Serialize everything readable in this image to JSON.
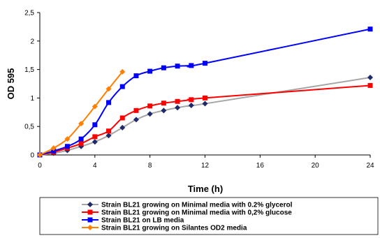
{
  "chart_data": {
    "type": "line",
    "xlabel": "Time (h)",
    "ylabel": "OD 595",
    "xlim": [
      0,
      24
    ],
    "ylim": [
      0,
      2.5
    ],
    "xticks": [
      0,
      4,
      8,
      12,
      16,
      20,
      24
    ],
    "xtick_labels": [
      "0",
      "4",
      "8",
      "12",
      "16",
      "20",
      "24"
    ],
    "yticks": [
      0,
      0.5,
      1,
      1.5,
      2,
      2.5
    ],
    "ytick_labels": [
      "0",
      "0,5",
      "1",
      "1,5",
      "2",
      "2,5"
    ],
    "grid": false,
    "legend_position": "bottom",
    "series": [
      {
        "name": "Strain BL21 growing on Minimal media with 0.2% glycerol",
        "color": "#1f2a6b",
        "line_color": "#a6a6a6",
        "marker": "diamond",
        "x": [
          0,
          1,
          2,
          3,
          4,
          5,
          6,
          7,
          8,
          9,
          10,
          11,
          12,
          24
        ],
        "y": [
          0,
          0.03,
          0.08,
          0.15,
          0.23,
          0.34,
          0.48,
          0.62,
          0.72,
          0.78,
          0.83,
          0.87,
          0.9,
          1.36
        ]
      },
      {
        "name": "Strain BL21 growing on Minimal media with 0,2% glucose",
        "color": "#ff0000",
        "line_color": "#ff0000",
        "marker": "square",
        "x": [
          0,
          1,
          2,
          3,
          4,
          5,
          6,
          7,
          8,
          9,
          10,
          11,
          12,
          24
        ],
        "y": [
          0,
          0.05,
          0.12,
          0.2,
          0.32,
          0.42,
          0.65,
          0.78,
          0.86,
          0.91,
          0.94,
          0.97,
          1.0,
          1.22
        ]
      },
      {
        "name": "Strain BL21 on LB media",
        "color": "#0000ff",
        "line_color": "#0000ff",
        "marker": "square",
        "x": [
          0,
          1,
          2,
          3,
          4,
          5,
          6,
          7,
          8,
          9,
          10,
          11,
          12,
          24
        ],
        "y": [
          0,
          0.07,
          0.15,
          0.28,
          0.53,
          0.92,
          1.2,
          1.39,
          1.47,
          1.53,
          1.56,
          1.57,
          1.61,
          2.21
        ]
      },
      {
        "name": "Strain BL21 growing on Silantes OD2 media",
        "color": "#ff7f00",
        "line_color": "#ff7f00",
        "marker": "diamond",
        "x": [
          0,
          1,
          2,
          3,
          4,
          5,
          6
        ],
        "y": [
          0,
          0.12,
          0.28,
          0.55,
          0.85,
          1.16,
          1.46
        ]
      }
    ]
  }
}
